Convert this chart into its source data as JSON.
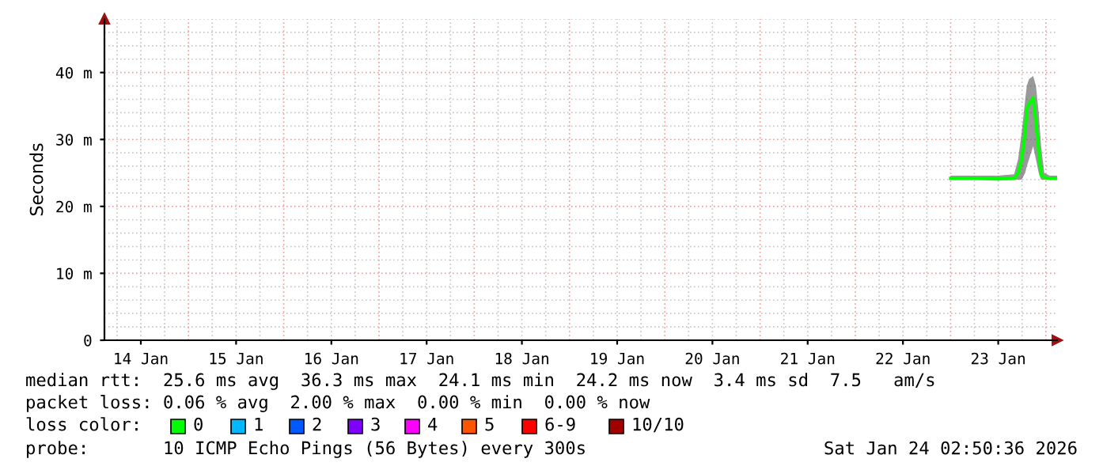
{
  "chart_data": {
    "type": "line",
    "ylabel": "Seconds",
    "xlim": [
      "2026-01-14T02:50",
      "2026-01-24T02:50"
    ],
    "xticks": [
      {
        "value": "2026-01-14T12:00",
        "label": "14 Jan"
      },
      {
        "value": "2026-01-15T12:00",
        "label": "15 Jan"
      },
      {
        "value": "2026-01-16T12:00",
        "label": "16 Jan"
      },
      {
        "value": "2026-01-17T12:00",
        "label": "17 Jan"
      },
      {
        "value": "2026-01-18T12:00",
        "label": "18 Jan"
      },
      {
        "value": "2026-01-19T12:00",
        "label": "19 Jan"
      },
      {
        "value": "2026-01-20T12:00",
        "label": "20 Jan"
      },
      {
        "value": "2026-01-21T12:00",
        "label": "21 Jan"
      },
      {
        "value": "2026-01-22T12:00",
        "label": "22 Jan"
      },
      {
        "value": "2026-01-23T12:00",
        "label": "23 Jan"
      }
    ],
    "ylim": [
      0,
      48
    ],
    "yticks": [
      {
        "value": 0,
        "label": "0"
      },
      {
        "value": 10,
        "label": "10 m"
      },
      {
        "value": 20,
        "label": "20 m"
      },
      {
        "value": 30,
        "label": "30 m"
      },
      {
        "value": 40,
        "label": "40 m"
      }
    ],
    "grid": true,
    "series": [
      {
        "color": "#00ff00",
        "x": [
          "2026-01-23T00:00",
          "2026-01-23T06:00",
          "2026-01-23T12:00",
          "2026-01-23T16:00",
          "2026-01-23T17:00",
          "2026-01-23T17:54",
          "2026-01-23T18:48",
          "2026-01-23T19:12",
          "2026-01-23T19:45",
          "2026-01-23T20:48",
          "2026-01-23T21:30",
          "2026-01-23T22:12",
          "2026-01-23T22:48",
          "2026-01-23T23:36",
          "2026-01-24T01:00",
          "2026-01-24T02:50"
        ],
        "values": [
          24.2,
          24.2,
          24.1,
          24.2,
          25,
          27,
          31.4,
          34.6,
          35.3,
          36.2,
          32.5,
          28.2,
          24.7,
          24.3,
          24.2,
          24.2
        ],
        "lower": [
          24.0,
          24.0,
          24.0,
          24.0,
          24,
          24,
          25,
          26,
          27,
          29,
          27,
          25,
          24,
          24,
          24.0,
          24.0
        ],
        "upper": [
          24.6,
          24.6,
          24.6,
          24.8,
          27,
          31,
          36,
          38,
          39,
          39.5,
          38,
          34,
          29,
          25,
          24.6,
          24.6
        ]
      }
    ],
    "annotations": [
      "median rtt:  25.6 ms avg  36.3 ms max  24.1 ms min  24.2 ms now  3.4 ms sd  7.5   am/s",
      "packet loss: 0.06 % avg  2.00 % max  0.00 % min  0.00 % now",
      "loss color:",
      "0",
      "1",
      "2",
      "3",
      "4",
      "5",
      "6-9",
      "10/10",
      "probe:       10 ICMP Echo Pings (56 Bytes) every 300s",
      "Sat Jan 24 02:50:36 2026"
    ]
  }
}
